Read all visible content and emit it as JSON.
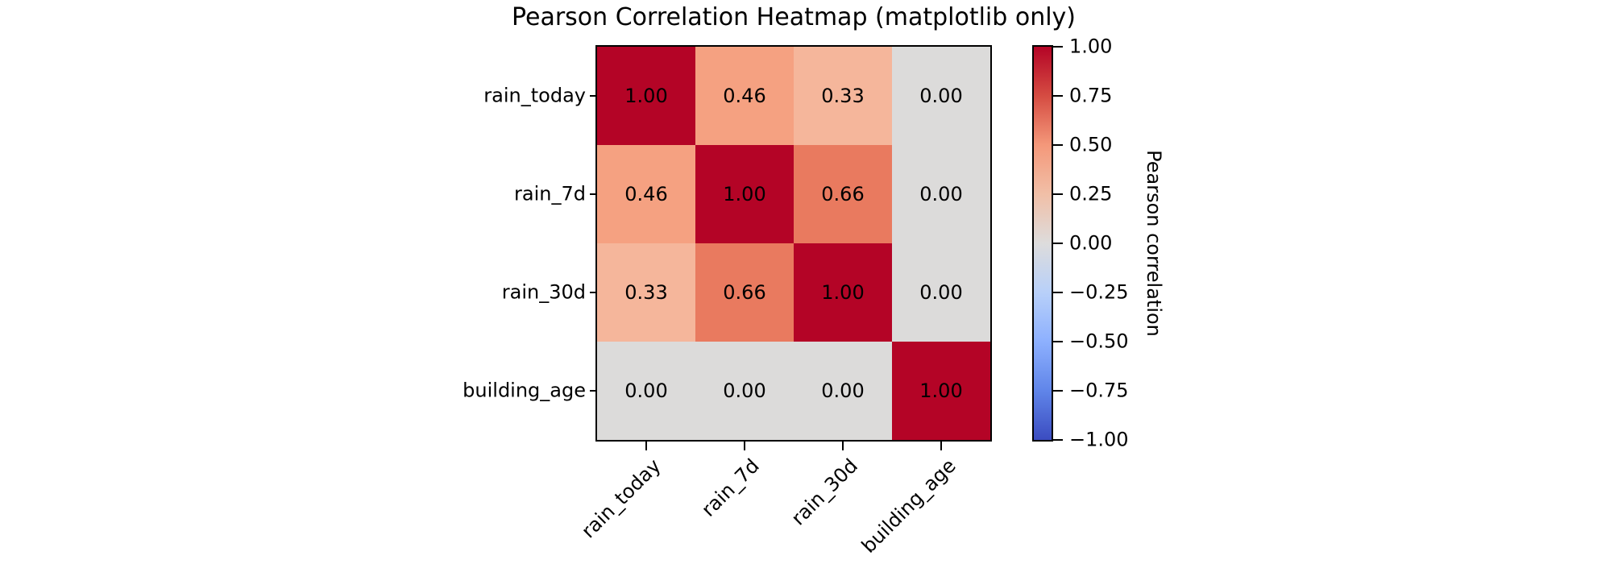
{
  "title": "Pearson Correlation Heatmap (matplotlib only)",
  "chart_data": {
    "type": "heatmap",
    "title": "Pearson Correlation Heatmap (matplotlib only)",
    "variables": [
      "rain_today",
      "rain_7d",
      "rain_30d",
      "building_age"
    ],
    "x_tick_labels": [
      "rain_today",
      "rain_7d",
      "rain_30d",
      "building_age"
    ],
    "y_tick_labels": [
      "rain_today",
      "rain_7d",
      "rain_30d",
      "building_age"
    ],
    "matrix": [
      [
        1.0,
        0.46,
        0.33,
        0.0
      ],
      [
        0.46,
        1.0,
        0.66,
        0.0
      ],
      [
        0.33,
        0.66,
        1.0,
        0.0
      ],
      [
        0.0,
        0.0,
        0.0,
        1.0
      ]
    ],
    "cell_labels": [
      [
        "1.00",
        "0.46",
        "0.33",
        "0.00"
      ],
      [
        "0.46",
        "1.00",
        "0.66",
        "0.00"
      ],
      [
        "0.33",
        "0.66",
        "1.00",
        "0.00"
      ],
      [
        "0.00",
        "0.00",
        "0.00",
        "1.00"
      ]
    ],
    "value_colors": {
      "1.00": "#B40426",
      "0.66": "#E97A5F",
      "0.46": "#F5A181",
      "0.33": "#F5B69B",
      "0.00": "#DCDBDA"
    },
    "vmin": -1.0,
    "vmax": 1.0,
    "grid": false,
    "x_label_rotation_deg": 45,
    "colorbar": {
      "label": "Pearson correlation",
      "tick_labels": [
        "1.00",
        "0.75",
        "0.50",
        "0.25",
        "0.00",
        "−0.25",
        "−0.50",
        "−0.75",
        "−1.00"
      ],
      "tick_values": [
        1.0,
        0.75,
        0.5,
        0.25,
        0.0,
        -0.25,
        -0.5,
        -0.75,
        -1.0
      ],
      "gradient_stops_top_to_bottom": [
        "#B40426",
        "#D54C42",
        "#F4987A",
        "#F1BFA7",
        "#DDDCDC",
        "#B8D0F9",
        "#8DB0FE",
        "#6085E9",
        "#3B4CC0"
      ]
    },
    "text_color": "#000000",
    "spine_color": "#000000"
  }
}
